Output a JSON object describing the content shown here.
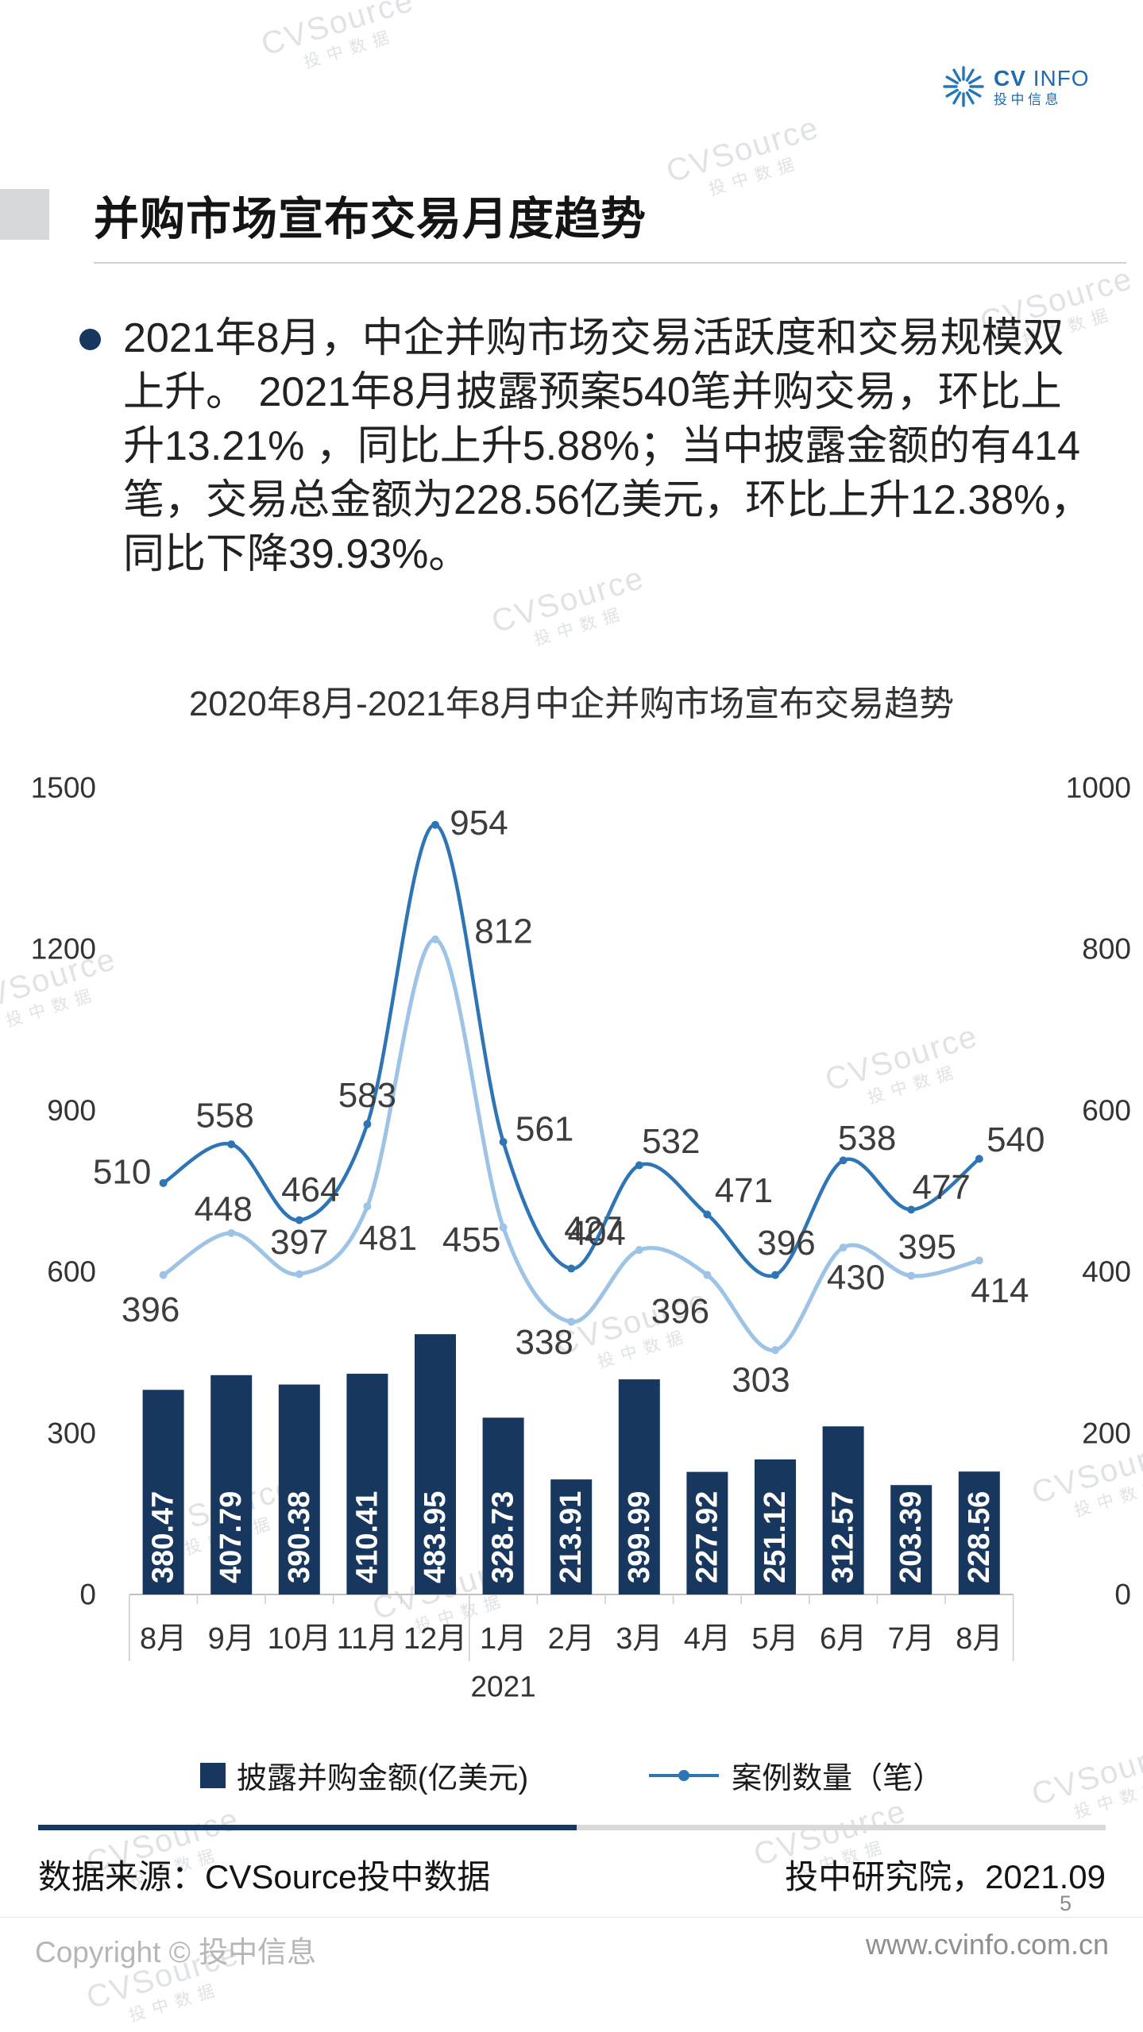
{
  "logo": {
    "brand_cv": "CV",
    "brand_info": "INFO",
    "subtitle": "投中信息"
  },
  "watermark": {
    "line1": "CVSource",
    "line2": "投中数据"
  },
  "header": {
    "title": "并购市场宣布交易月度趋势"
  },
  "summary": {
    "bullet_text": "2021年8月，中企并购市场交易活跃度和交易规模双上升。 2021年8月披露预案540笔并购交易，环比上升13.21% ，同比上升5.88%；当中披露金额的有414笔，交易总金额为228.56亿美元，环比上升12.38%，同比下降39.93%。"
  },
  "chart_data": {
    "type": "bar+line",
    "title": "2020年8月-2021年8月中企并购市场宣布交易趋势",
    "categories": [
      "8月",
      "9月",
      "10月",
      "11月",
      "12月",
      "1月",
      "2月",
      "3月",
      "4月",
      "5月",
      "6月",
      "7月",
      "8月"
    ],
    "year_label": "2021",
    "left_axis": {
      "ticks": [
        0,
        300,
        600,
        900,
        1200,
        1500
      ],
      "range": [
        0,
        1500
      ]
    },
    "right_axis": {
      "ticks": [
        0,
        200,
        400,
        600,
        800,
        1000
      ],
      "range": [
        0,
        1000
      ]
    },
    "bar_series": {
      "name": "披露并购金额(亿美元)",
      "axis": "left",
      "color": "#17375E",
      "values": [
        380.47,
        407.79,
        390.38,
        410.41,
        483.95,
        328.73,
        213.91,
        399.99,
        227.92,
        251.12,
        312.57,
        203.39,
        228.56
      ]
    },
    "line_series": [
      {
        "name": "案例数量（笔）",
        "axis": "right",
        "color": "#2E75B6",
        "values": [
          510,
          558,
          464,
          583,
          954,
          561,
          404,
          532,
          471,
          396,
          538,
          477,
          540
        ]
      },
      {
        "axis": "right",
        "color": "#9DC3E6",
        "values": [
          396,
          448,
          397,
          481,
          812,
          455,
          338,
          427,
          396,
          303,
          430,
          395,
          414
        ]
      }
    ],
    "legend": [
      {
        "label": "披露并购金额(亿美元)",
        "type": "bar"
      },
      {
        "label": "案例数量（笔）",
        "type": "line"
      }
    ],
    "grid": false,
    "legend_position": "bottom"
  },
  "footer": {
    "source": "数据来源：CVSource投中数据",
    "org": "投中研究院，2021.09",
    "page": "5",
    "copyright": "Copyright © 投中信息",
    "website": "www.cvinfo.com.cn"
  }
}
